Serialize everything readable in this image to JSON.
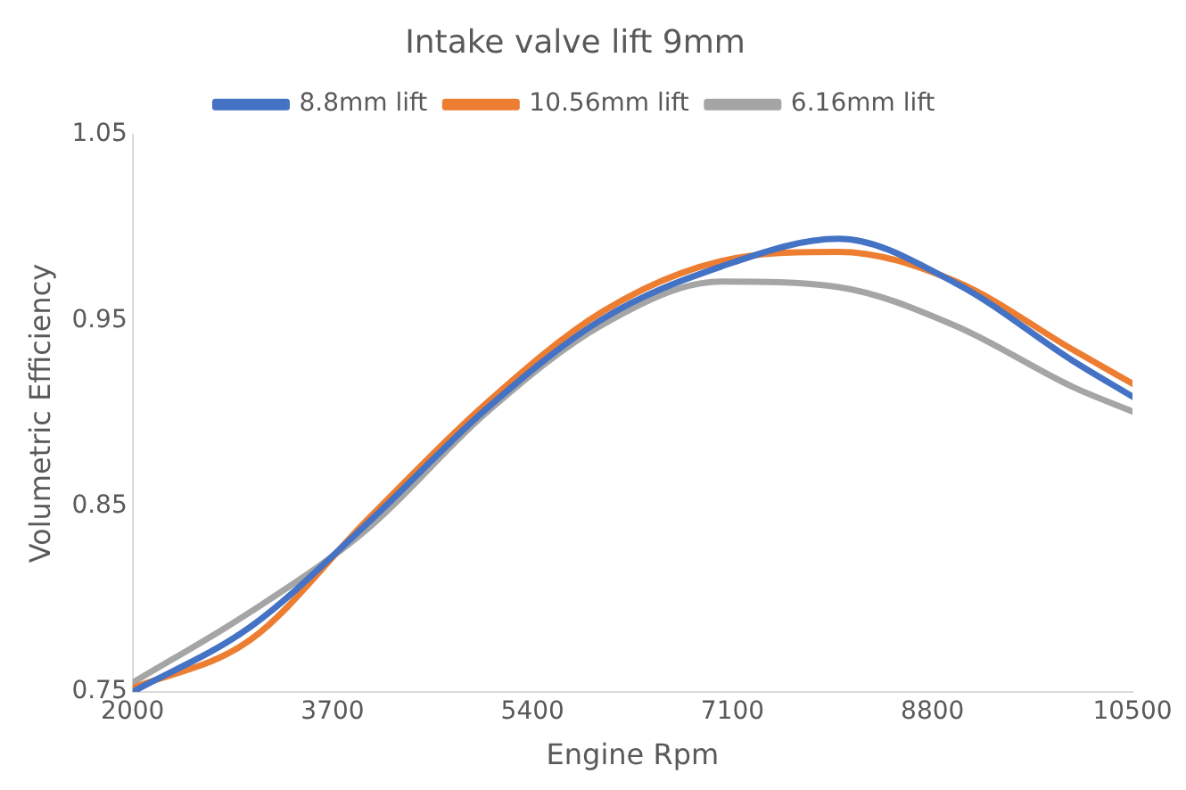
{
  "chart_data": {
    "type": "line",
    "title": "Intake valve lift 9mm",
    "xlabel": "Engine Rpm",
    "ylabel": "Volumetric Efficiency",
    "x": [
      2000,
      3000,
      4000,
      5000,
      6000,
      7000,
      8000,
      9000,
      10000,
      10500
    ],
    "series": [
      {
        "name": "8.8mm lift",
        "color": "#4472c4",
        "values": [
          0.75,
          0.785,
          0.841,
          0.902,
          0.951,
          0.979,
          0.994,
          0.97,
          0.928,
          0.909
        ]
      },
      {
        "name": "10.56mm lift",
        "color": "#ed7d31",
        "values": [
          0.752,
          0.778,
          0.843,
          0.905,
          0.955,
          0.982,
          0.987,
          0.971,
          0.934,
          0.916
        ]
      },
      {
        "name": "6.16mm lift",
        "color": "#a5a5a5",
        "values": [
          0.755,
          0.793,
          0.838,
          0.9,
          0.948,
          0.971,
          0.968,
          0.947,
          0.914,
          0.901
        ]
      }
    ],
    "xlim": [
      2000,
      10500
    ],
    "xticks": [
      2000,
      3700,
      5400,
      7100,
      8800,
      10500
    ],
    "ylim": [
      0.75,
      1.05
    ],
    "yticks": [
      0.75,
      0.85,
      0.95,
      1.05
    ],
    "grid": false,
    "legend": "top",
    "marker": "none",
    "line_style": "solid"
  }
}
